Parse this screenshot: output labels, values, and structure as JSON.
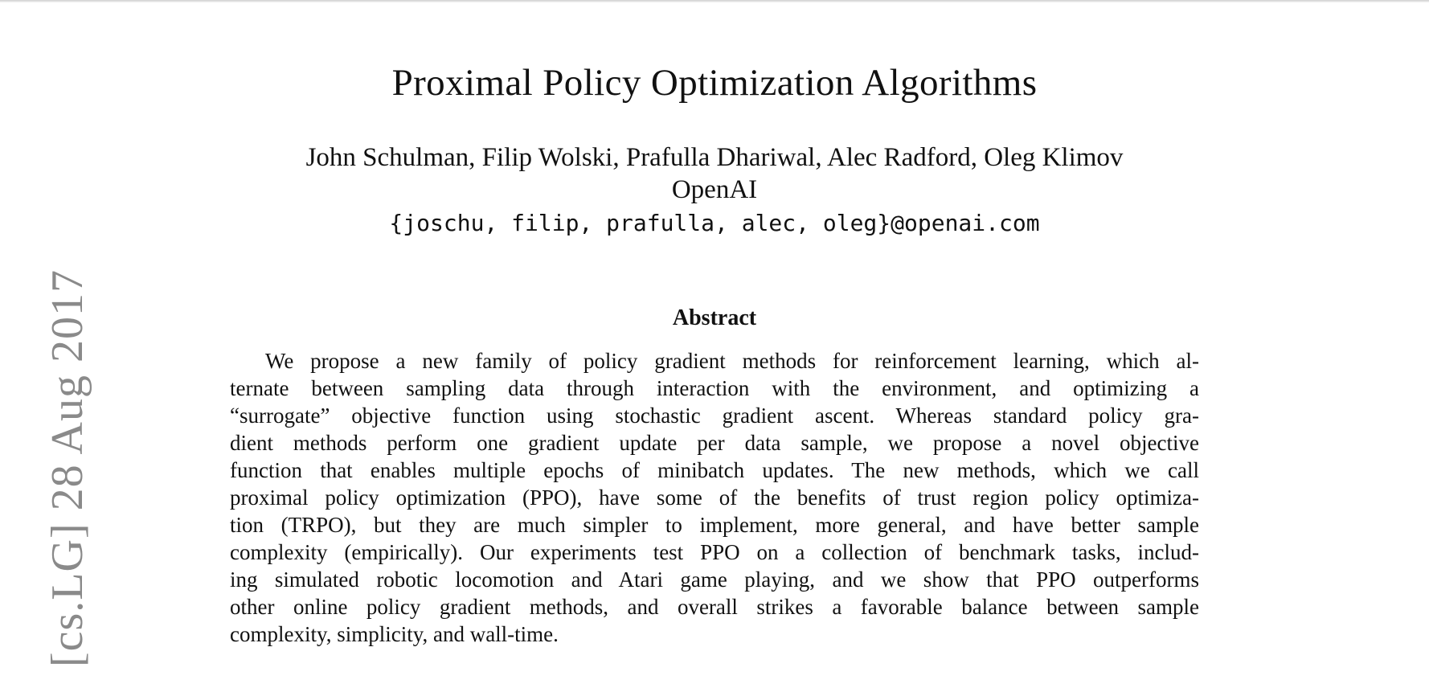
{
  "paper": {
    "title": "Proximal Policy Optimization Algorithms",
    "authors": "John Schulman, Filip Wolski, Prafulla Dhariwal, Alec Radford, Oleg Klimov",
    "affiliation": "OpenAI",
    "email": "{joschu, filip, prafulla, alec, oleg}@openai.com",
    "arxiv_stamp": "[cs.LG] 28 Aug 2017"
  },
  "abstract": {
    "heading": "Abstract",
    "lines": [
      "We propose a new family of policy gradient methods for reinforcement learning, which al-",
      "ternate between sampling data through interaction with the environment, and optimizing a",
      "“surrogate” objective function using stochastic gradient ascent. Whereas standard policy gra-",
      "dient methods perform one gradient update per data sample, we propose a novel objective",
      "function that enables multiple epochs of minibatch updates. The new methods, which we call",
      "proximal policy optimization (PPO), have some of the benefits of trust region policy optimiza-",
      "tion (TRPO), but they are much simpler to implement, more general, and have better sample",
      "complexity (empirically). Our experiments test PPO on a collection of benchmark tasks, includ-",
      "ing simulated robotic locomotion and Atari game playing, and we show that PPO outperforms",
      "other online policy gradient methods, and overall strikes a favorable balance between sample",
      "complexity, simplicity, and wall-time."
    ]
  }
}
